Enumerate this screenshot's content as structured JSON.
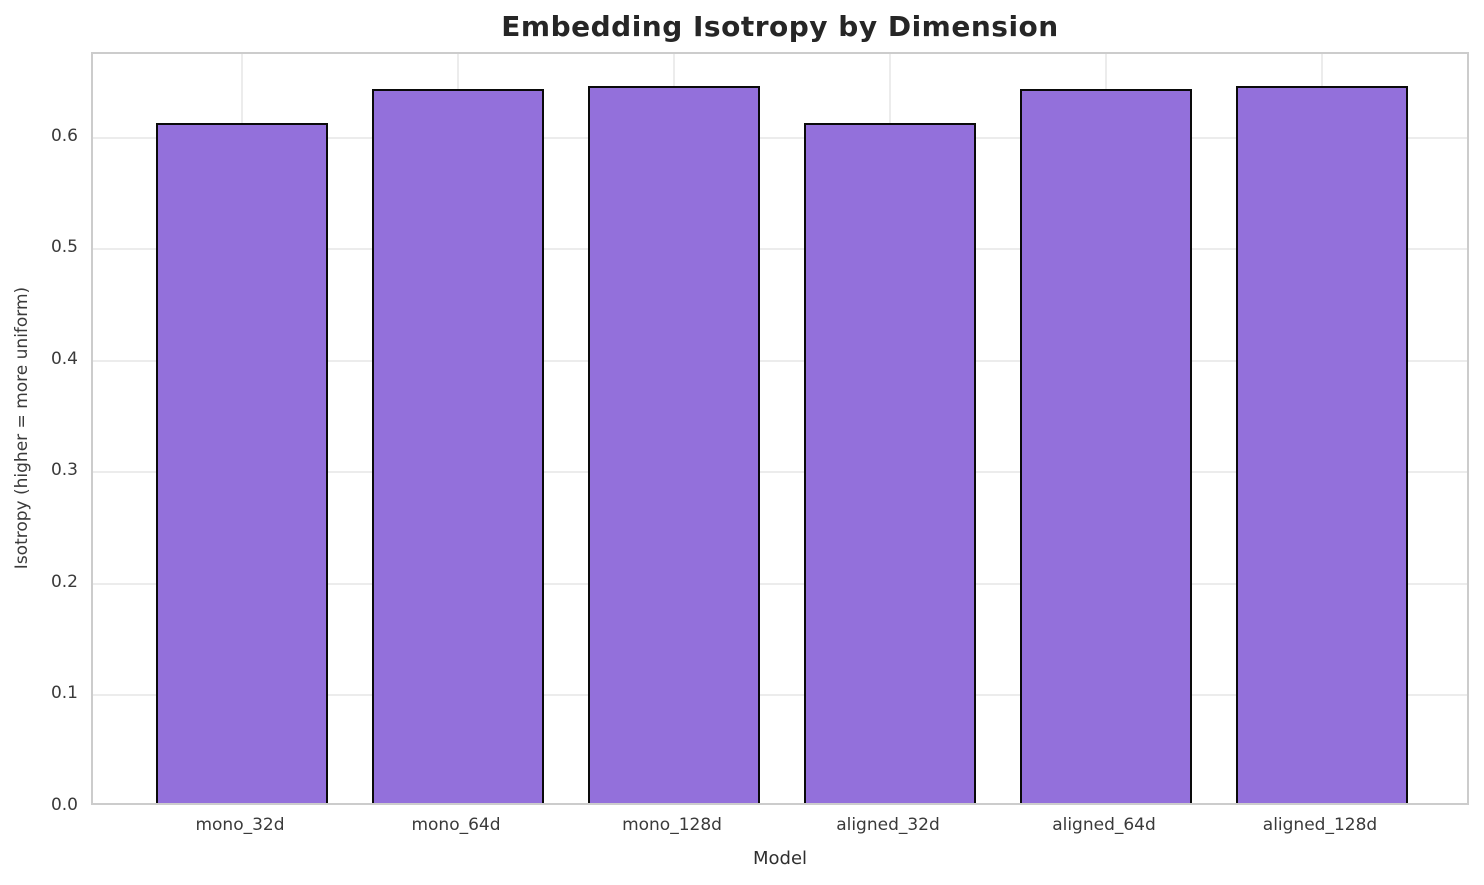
{
  "chart_data": {
    "type": "bar",
    "title": "Embedding Isotropy by Dimension",
    "xlabel": "Model",
    "ylabel": "Isotropy (higher = more uniform)",
    "categories": [
      "mono_32d",
      "mono_64d",
      "mono_128d",
      "aligned_32d",
      "aligned_64d",
      "aligned_128d"
    ],
    "values": [
      0.61,
      0.64,
      0.643,
      0.61,
      0.64,
      0.643
    ],
    "ylim": [
      0,
      0.675
    ],
    "yticks": [
      0.0,
      0.1,
      0.2,
      0.3,
      0.4,
      0.5,
      0.6
    ],
    "ytick_labels": [
      "0.0",
      "0.1",
      "0.2",
      "0.3",
      "0.4",
      "0.5",
      "0.6"
    ],
    "grid": true,
    "legend": "none",
    "bar_color": "#9370DB",
    "bar_edge_color": "#0a0a0a",
    "grid_color": "#ececec",
    "spine_color": "#cccccc",
    "title_color": "#262626",
    "tick_label_color": "#3a3a3a"
  }
}
